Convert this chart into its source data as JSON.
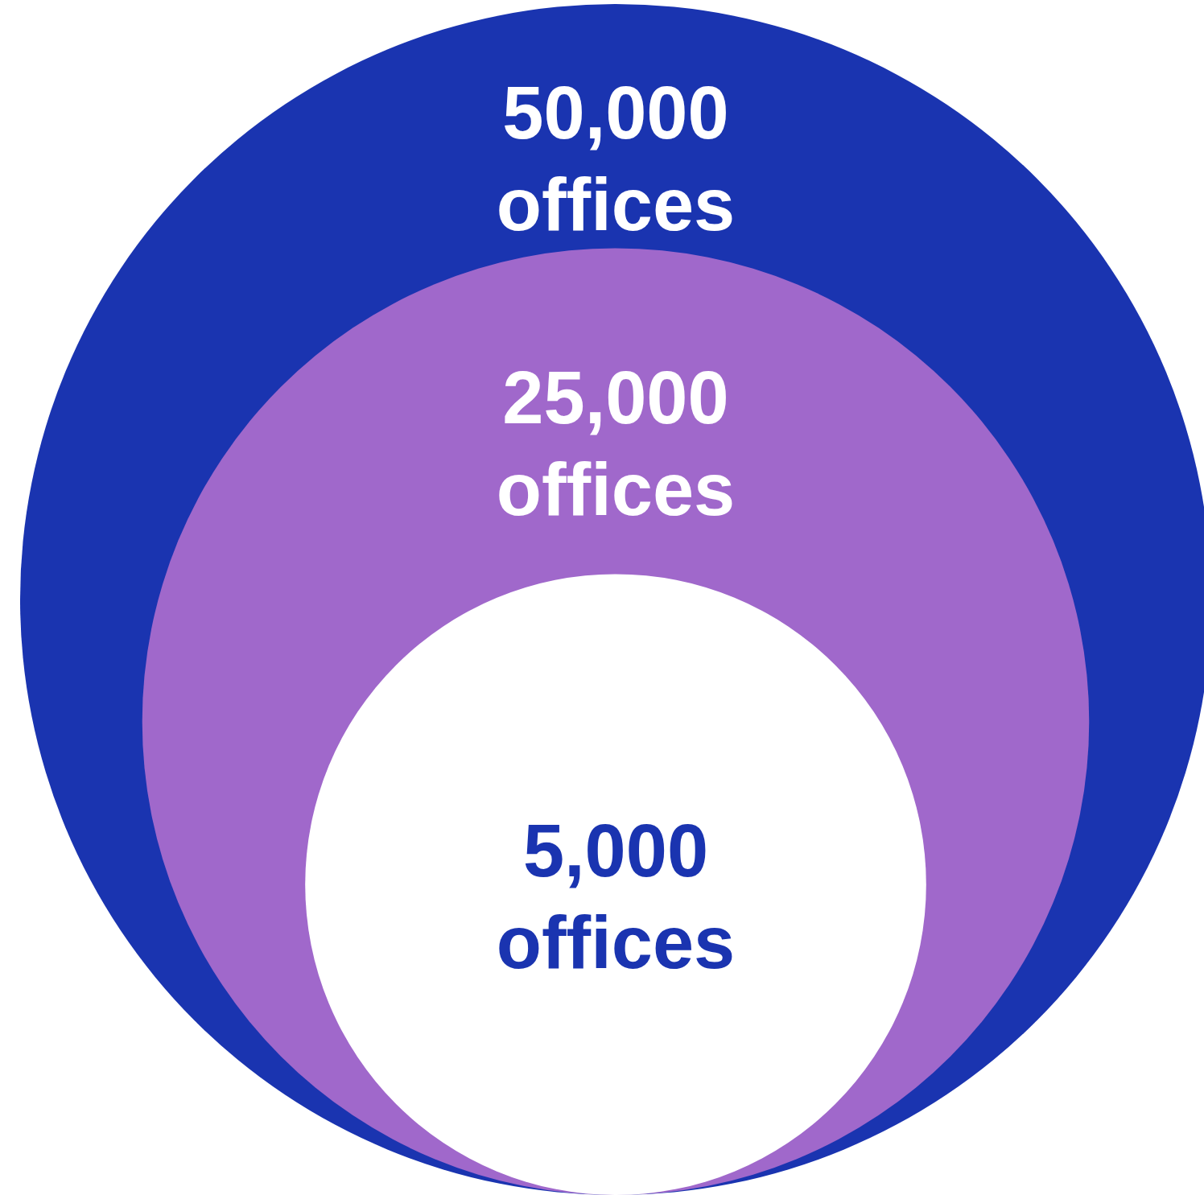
{
  "chart_data": {
    "type": "other",
    "categories": [
      "offices",
      "offices",
      "offices"
    ],
    "values": [
      50000,
      25000,
      5000
    ],
    "value_labels": [
      "50,000",
      "25,000",
      "5,000"
    ],
    "colors": [
      "#1a34b0",
      "#a068cb",
      "#ffffff"
    ]
  }
}
